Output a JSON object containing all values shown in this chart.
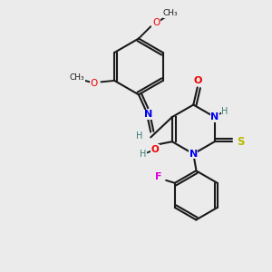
{
  "background_color": "#ebebeb",
  "bond_color": "#1a1a1a",
  "atom_colors": {
    "N": "#0000ee",
    "O": "#ee0000",
    "S": "#b8b800",
    "F": "#dd00dd",
    "H": "#3a7a7a",
    "C": "#1a1a1a"
  },
  "figsize": [
    3.0,
    3.0
  ],
  "dpi": 100
}
